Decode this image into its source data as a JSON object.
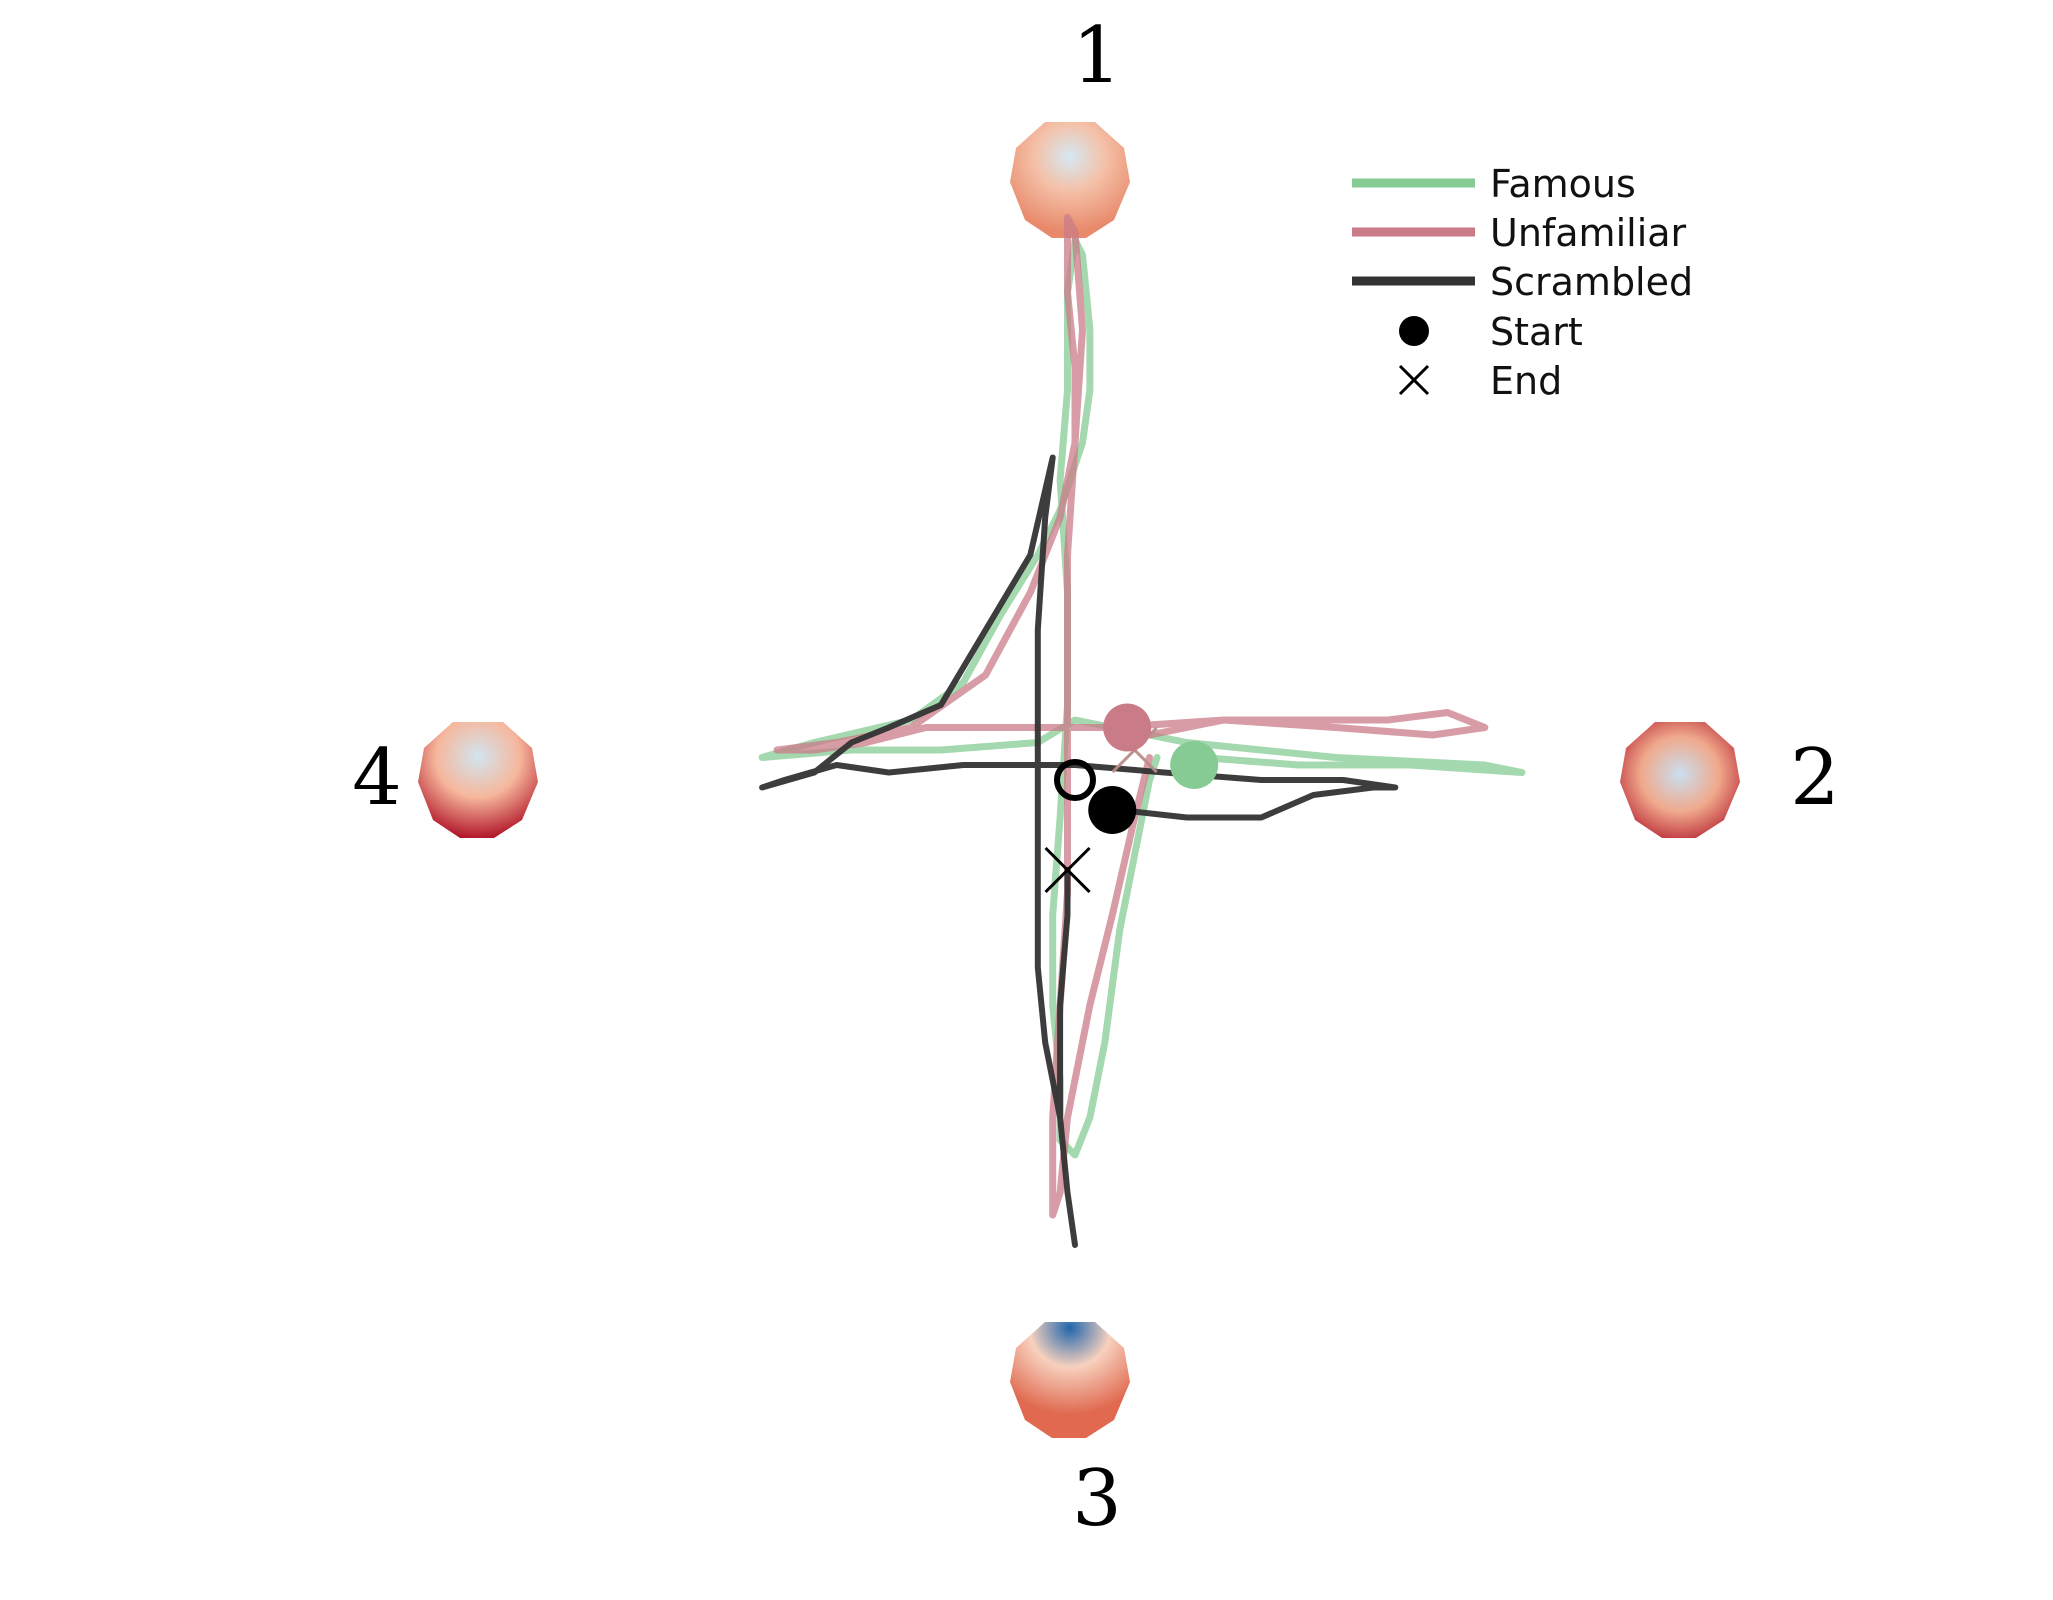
{
  "chart_data": {
    "type": "line",
    "title": "",
    "xlabel": "",
    "ylabel": "",
    "xlim": [
      -1,
      1
    ],
    "ylim": [
      -1,
      1
    ],
    "grid": false,
    "legend_placement": "top-right",
    "corner_labels": [
      "1",
      "2",
      "3",
      "4"
    ],
    "corner_maps": [
      {
        "label": "1",
        "direction": "up",
        "colors": {
          "center": "#d6e8f3",
          "edge": "#e8896a",
          "accent": "#f4c1a8"
        }
      },
      {
        "label": "2",
        "direction": "right",
        "colors": {
          "center": "#c9dff0",
          "edge": "#b2182b",
          "accent": "#f0a98c"
        }
      },
      {
        "label": "3",
        "direction": "down",
        "colors": {
          "center": "#2166ac",
          "edge": "#e0694f",
          "accent": "#f7d1be"
        }
      },
      {
        "label": "4",
        "direction": "left",
        "colors": {
          "center": "#d1e5f0",
          "edge": "#b2182b",
          "accent": "#f6b79c"
        }
      }
    ],
    "legend": [
      {
        "label": "Famous",
        "kind": "line",
        "color": "#86cb93"
      },
      {
        "label": "Unfamiliar",
        "kind": "line",
        "color": "#c97b87"
      },
      {
        "label": "Scrambled",
        "kind": "line",
        "color": "#333333"
      },
      {
        "label": "Start",
        "kind": "dot",
        "color": "#000000"
      },
      {
        "label": "End",
        "kind": "cross",
        "color": "#000000"
      }
    ],
    "series": [
      {
        "name": "Famous",
        "color": "#86cb93",
        "points": [
          [
            0.17,
            0.03
          ],
          [
            0.3,
            0.02
          ],
          [
            0.45,
            0.02
          ],
          [
            0.6,
            0.01
          ],
          [
            0.55,
            0.02
          ],
          [
            0.35,
            0.03
          ],
          [
            0.15,
            0.05
          ],
          [
            0.0,
            0.08
          ],
          [
            -0.05,
            0.05
          ],
          [
            -0.18,
            0.04
          ],
          [
            -0.3,
            0.04
          ],
          [
            -0.42,
            0.03
          ],
          [
            -0.35,
            0.05
          ],
          [
            -0.22,
            0.08
          ],
          [
            -0.15,
            0.13
          ],
          [
            -0.1,
            0.22
          ],
          [
            -0.05,
            0.3
          ],
          [
            -0.02,
            0.36
          ],
          [
            0.01,
            0.45
          ],
          [
            0.02,
            0.52
          ],
          [
            0.02,
            0.6
          ],
          [
            0.01,
            0.7
          ],
          [
            0.0,
            0.72
          ],
          [
            -0.01,
            0.65
          ],
          [
            -0.01,
            0.52
          ],
          [
            -0.02,
            0.4
          ],
          [
            -0.01,
            0.25
          ],
          [
            -0.01,
            0.1
          ],
          [
            -0.02,
            -0.05
          ],
          [
            -0.03,
            -0.18
          ],
          [
            -0.03,
            -0.3
          ],
          [
            -0.02,
            -0.4
          ],
          [
            -0.02,
            -0.48
          ],
          [
            0.0,
            -0.5
          ],
          [
            0.02,
            -0.45
          ],
          [
            0.04,
            -0.35
          ],
          [
            0.06,
            -0.2
          ],
          [
            0.08,
            -0.1
          ],
          [
            0.1,
            0.0
          ],
          [
            0.11,
            0.03
          ]
        ]
      },
      {
        "name": "Unfamiliar",
        "color": "#c97b87",
        "points": [
          [
            0.1,
            0.06
          ],
          [
            0.2,
            0.08
          ],
          [
            0.3,
            0.08
          ],
          [
            0.42,
            0.08
          ],
          [
            0.5,
            0.09
          ],
          [
            0.55,
            0.07
          ],
          [
            0.48,
            0.06
          ],
          [
            0.35,
            0.07
          ],
          [
            0.2,
            0.08
          ],
          [
            0.05,
            0.07
          ],
          [
            -0.1,
            0.07
          ],
          [
            -0.2,
            0.07
          ],
          [
            -0.28,
            0.05
          ],
          [
            -0.35,
            0.04
          ],
          [
            -0.4,
            0.04
          ],
          [
            -0.32,
            0.05
          ],
          [
            -0.22,
            0.07
          ],
          [
            -0.12,
            0.14
          ],
          [
            -0.06,
            0.25
          ],
          [
            -0.02,
            0.35
          ],
          [
            0.0,
            0.45
          ],
          [
            0.0,
            0.55
          ],
          [
            -0.01,
            0.65
          ],
          [
            -0.01,
            0.75
          ],
          [
            0.0,
            0.73
          ],
          [
            0.01,
            0.6
          ],
          [
            0.0,
            0.45
          ],
          [
            -0.01,
            0.3
          ],
          [
            -0.01,
            0.15
          ],
          [
            -0.01,
            0.0
          ],
          [
            -0.01,
            -0.15
          ],
          [
            -0.02,
            -0.3
          ],
          [
            -0.03,
            -0.45
          ],
          [
            -0.03,
            -0.58
          ],
          [
            -0.02,
            -0.55
          ],
          [
            -0.01,
            -0.45
          ],
          [
            0.02,
            -0.3
          ],
          [
            0.05,
            -0.18
          ],
          [
            0.08,
            -0.05
          ],
          [
            0.1,
            0.03
          ]
        ]
      },
      {
        "name": "Scrambled",
        "color": "#333333",
        "points": [
          [
            0.06,
            -0.04
          ],
          [
            0.15,
            -0.05
          ],
          [
            0.25,
            -0.05
          ],
          [
            0.32,
            -0.02
          ],
          [
            0.4,
            -0.01
          ],
          [
            0.43,
            -0.01
          ],
          [
            0.36,
            0.0
          ],
          [
            0.25,
            0.0
          ],
          [
            0.12,
            0.01
          ],
          [
            0.0,
            0.02
          ],
          [
            -0.05,
            0.02
          ],
          [
            -0.15,
            0.02
          ],
          [
            -0.25,
            0.01
          ],
          [
            -0.32,
            0.02
          ],
          [
            -0.39,
            0.0
          ],
          [
            -0.42,
            -0.01
          ],
          [
            -0.35,
            0.01
          ],
          [
            -0.3,
            0.05
          ],
          [
            -0.25,
            0.07
          ],
          [
            -0.18,
            0.1
          ],
          [
            -0.12,
            0.2
          ],
          [
            -0.06,
            0.3
          ],
          [
            -0.03,
            0.43
          ],
          [
            -0.04,
            0.35
          ],
          [
            -0.05,
            0.2
          ],
          [
            -0.05,
            0.05
          ],
          [
            -0.05,
            -0.1
          ],
          [
            -0.05,
            -0.25
          ],
          [
            -0.04,
            -0.35
          ],
          [
            -0.02,
            -0.45
          ],
          [
            -0.01,
            -0.55
          ],
          [
            0.0,
            -0.62
          ],
          [
            -0.01,
            -0.55
          ],
          [
            -0.02,
            -0.45
          ],
          [
            -0.02,
            -0.3
          ],
          [
            -0.01,
            -0.18
          ],
          [
            -0.01,
            -0.12
          ]
        ]
      }
    ],
    "start_markers": [
      {
        "series": "Famous",
        "x": 0.16,
        "y": 0.02,
        "color": "#86cb93"
      },
      {
        "series": "Unfamiliar",
        "x": 0.07,
        "y": 0.07,
        "color": "#c97b87"
      },
      {
        "series": "Scrambled",
        "x": 0.05,
        "y": -0.04,
        "color": "#000000"
      }
    ],
    "end_markers": [
      {
        "series": "Famous",
        "x": 0.08,
        "y": 0.04,
        "color": "#86cb93"
      },
      {
        "series": "Unfamiliar",
        "x": 0.08,
        "y": 0.04,
        "color": "#c97b87"
      },
      {
        "series": "Scrambled",
        "x": -0.01,
        "y": -0.12,
        "color": "#000000"
      }
    ],
    "open_marker": {
      "x": 0.0,
      "y": 0.0,
      "color": "#000000"
    }
  }
}
